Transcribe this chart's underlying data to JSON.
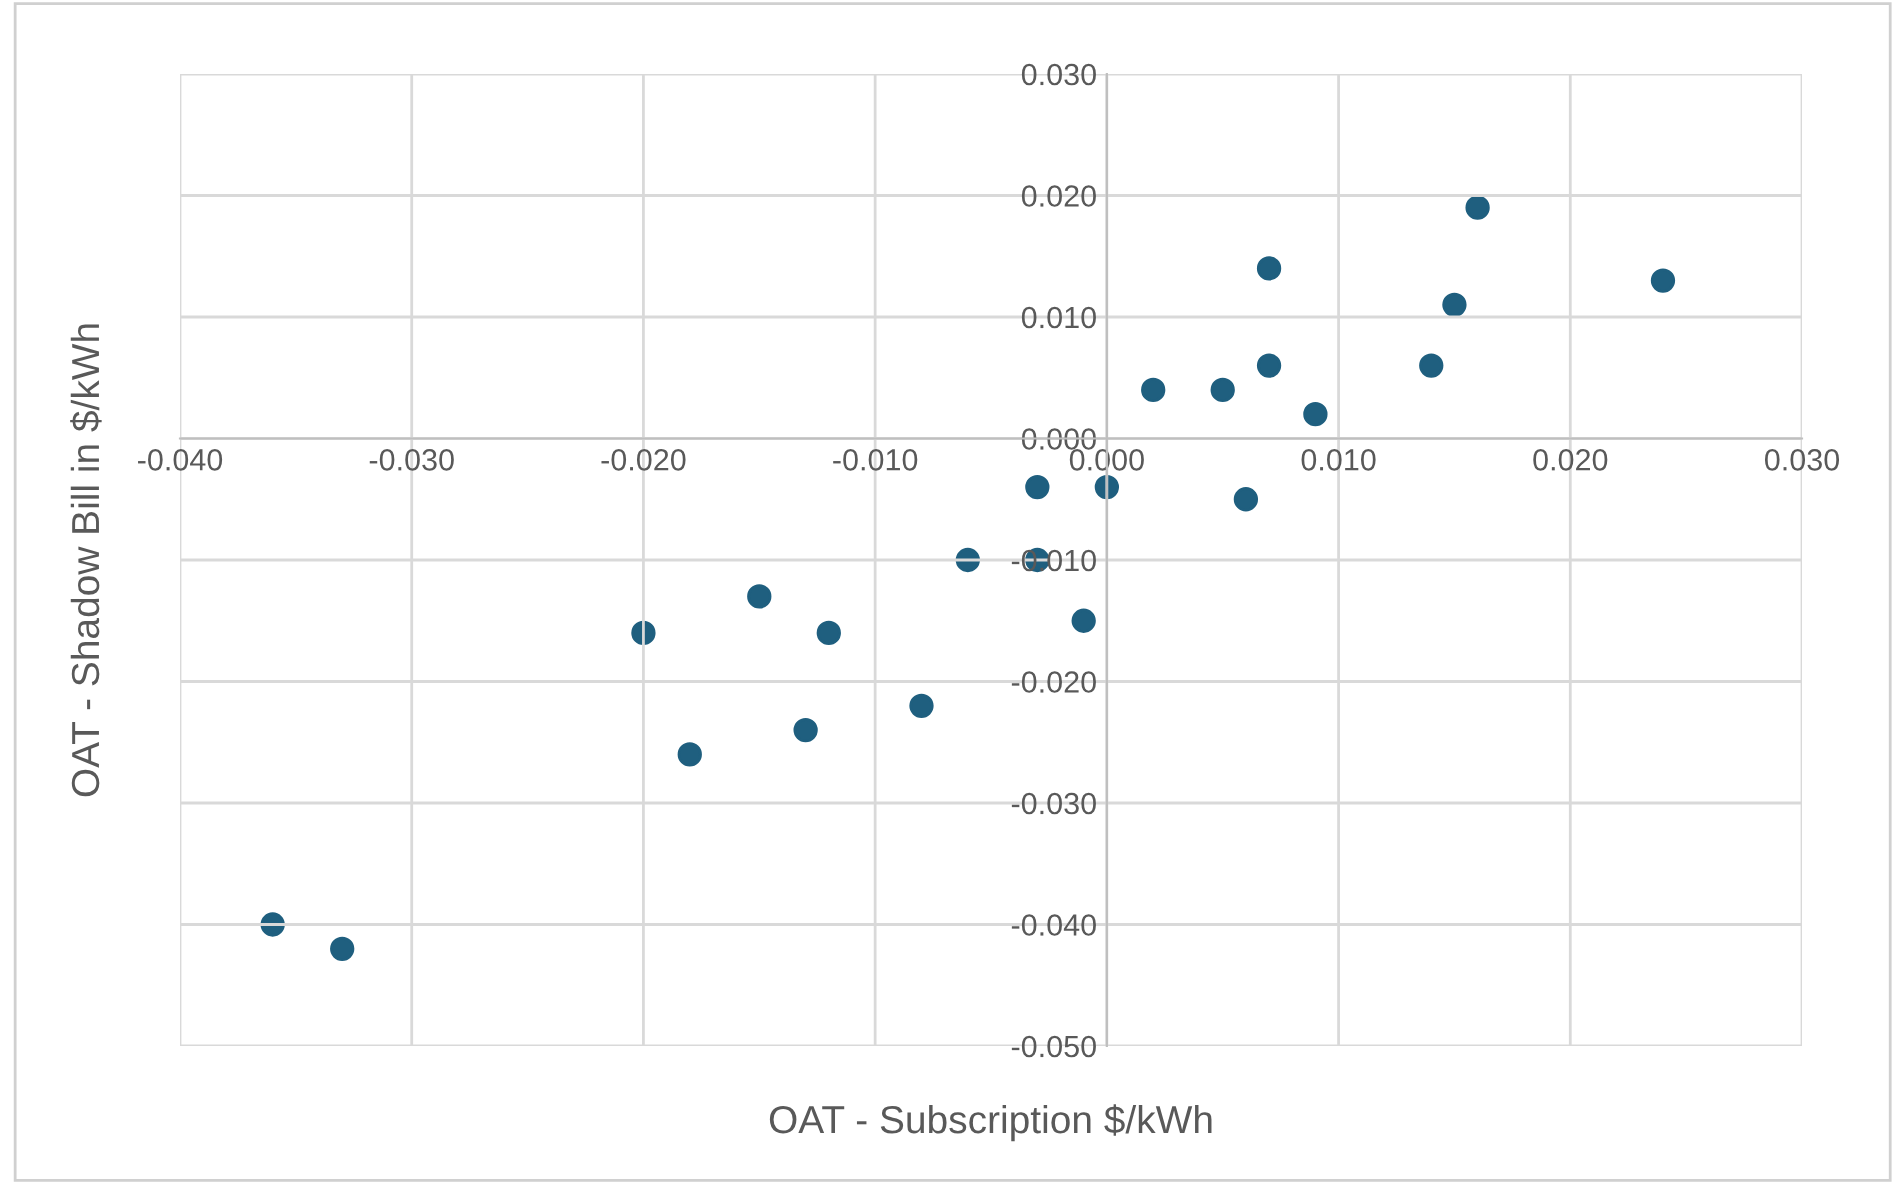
{
  "chart_data": {
    "type": "scatter",
    "xlabel": "OAT - Subscription $/kWh",
    "ylabel": "OAT - Shadow Bill in $/kWh",
    "x": [
      -0.036,
      -0.033,
      -0.02,
      -0.018,
      -0.015,
      -0.013,
      -0.012,
      -0.008,
      -0.006,
      -0.003,
      -0.003,
      -0.001,
      0.0,
      0.002,
      0.005,
      0.006,
      0.007,
      0.007,
      0.009,
      0.014,
      0.015,
      0.016,
      0.024
    ],
    "series": [
      {
        "color": "#1f5f7f",
        "values": [
          -0.04,
          -0.042,
          -0.016,
          -0.026,
          -0.013,
          -0.024,
          -0.016,
          -0.022,
          -0.01,
          -0.004,
          -0.01,
          -0.015,
          -0.004,
          0.004,
          0.004,
          -0.005,
          0.014,
          0.006,
          0.002,
          0.006,
          0.011,
          0.019,
          0.013
        ]
      }
    ],
    "xlim": [
      -0.04,
      0.03
    ],
    "ylim": [
      -0.05,
      0.03
    ],
    "xticks": [
      {
        "value": -0.04,
        "label": "-0.040"
      },
      {
        "value": -0.03,
        "label": "-0.030"
      },
      {
        "value": -0.02,
        "label": "-0.020"
      },
      {
        "value": -0.01,
        "label": "-0.010"
      },
      {
        "value": 0,
        "label": "0.000"
      },
      {
        "value": 0.01,
        "label": "0.010"
      },
      {
        "value": 0.02,
        "label": "0.020"
      },
      {
        "value": 0.03,
        "label": "0.030"
      }
    ],
    "yticks": [
      {
        "value": -0.05,
        "label": "-0.050"
      },
      {
        "value": -0.04,
        "label": "-0.040"
      },
      {
        "value": -0.03,
        "label": "-0.030"
      },
      {
        "value": -0.02,
        "label": "-0.020"
      },
      {
        "value": -0.01,
        "label": "-0.010"
      },
      {
        "value": 0,
        "label": "0.000"
      },
      {
        "value": 0.01,
        "label": "0.010"
      },
      {
        "value": 0.02,
        "label": "0.020"
      },
      {
        "value": 0.03,
        "label": "0.030"
      }
    ],
    "grid": true,
    "marker": "circle"
  }
}
